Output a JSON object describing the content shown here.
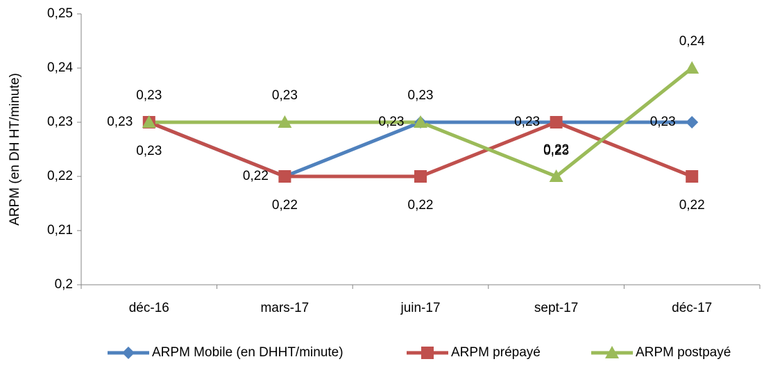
{
  "chart_data": {
    "type": "line",
    "y_label": "ARPM (en DH HT/minute)",
    "categories": [
      "déc-16",
      "mars-17",
      "juin-17",
      "sept-17",
      "déc-17"
    ],
    "series": [
      {
        "name": "ARPM Mobile (en DHHT/minute)",
        "color": "#4f81bd",
        "marker": "diamond",
        "values": [
          0.23,
          0.22,
          0.23,
          0.23,
          0.23
        ],
        "value_labels": [
          "0,23",
          "0,22",
          "0,23",
          "0,23",
          "0,23"
        ]
      },
      {
        "name": "ARPM prépayé",
        "color": "#c0504d",
        "marker": "square",
        "values": [
          0.23,
          0.22,
          0.22,
          0.23,
          0.22
        ],
        "value_labels": [
          "0,23",
          "0,22",
          "0,22",
          "0,23",
          "0,22"
        ]
      },
      {
        "name": "ARPM postpayé",
        "color": "#9bbb59",
        "marker": "triangle",
        "values": [
          0.23,
          0.23,
          0.23,
          0.22,
          0.24
        ],
        "value_labels": [
          "0,23",
          "0,23",
          "0,23",
          "0,22",
          "0,24"
        ]
      }
    ],
    "ylim": [
      0.2,
      0.25
    ],
    "yticks": [
      {
        "value": 0.2,
        "label": "0,2"
      },
      {
        "value": 0.21,
        "label": "0,21"
      },
      {
        "value": 0.22,
        "label": "0,22"
      },
      {
        "value": 0.23,
        "label": "0,23"
      },
      {
        "value": 0.24,
        "label": "0,24"
      },
      {
        "value": 0.25,
        "label": "0,25"
      }
    ],
    "grid": false,
    "legend": "bottom"
  }
}
